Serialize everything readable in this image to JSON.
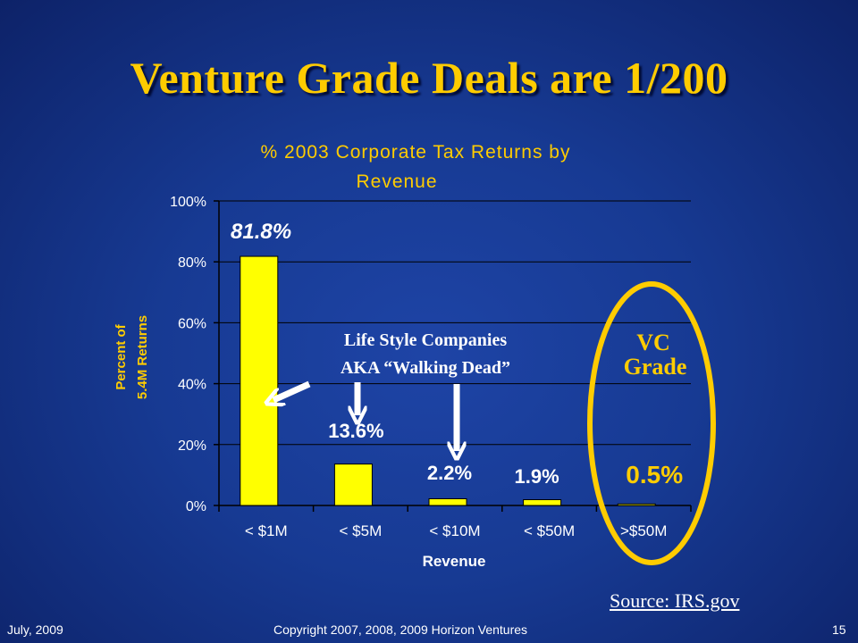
{
  "slide": {
    "title": "Venture Grade Deals are 1/200",
    "source": "Source: IRS.gov",
    "footer_left": "July, 2009",
    "footer_center": "Copyright 2007, 2008, 2009 Horizon Ventures",
    "footer_right": "15"
  },
  "annotations": {
    "lifestyle_line1": "Life Style Companies",
    "lifestyle_line2": "AKA “Walking Dead”",
    "vc_line1": "VC",
    "vc_line2": "Grade"
  },
  "colors": {
    "background": "#173a93",
    "title": "#ffcc00",
    "bar": "#ffff00",
    "ellipse": "#ffcc00",
    "text": "#ffffff",
    "axis": "#000000"
  },
  "chart_data": {
    "type": "bar",
    "title_line1": "% 2003 Corporate Tax Returns by",
    "title_line2": "Revenue",
    "categories": [
      "< $1M",
      "< $5M",
      "< $10M",
      "< $50M",
      ">$50M"
    ],
    "values": [
      81.8,
      13.6,
      2.2,
      1.9,
      0.5
    ],
    "data_labels": [
      "81.8%",
      "13.6%",
      "2.2%",
      "1.9%",
      "0.5%"
    ],
    "xlabel": "Revenue",
    "ylabel_line1": "Percent of",
    "ylabel_line2": "5.4M Returns",
    "ylim": [
      0,
      100
    ],
    "yticks": [
      "0%",
      "20%",
      "40%",
      "60%",
      "80%",
      "100%"
    ],
    "grid": true
  }
}
